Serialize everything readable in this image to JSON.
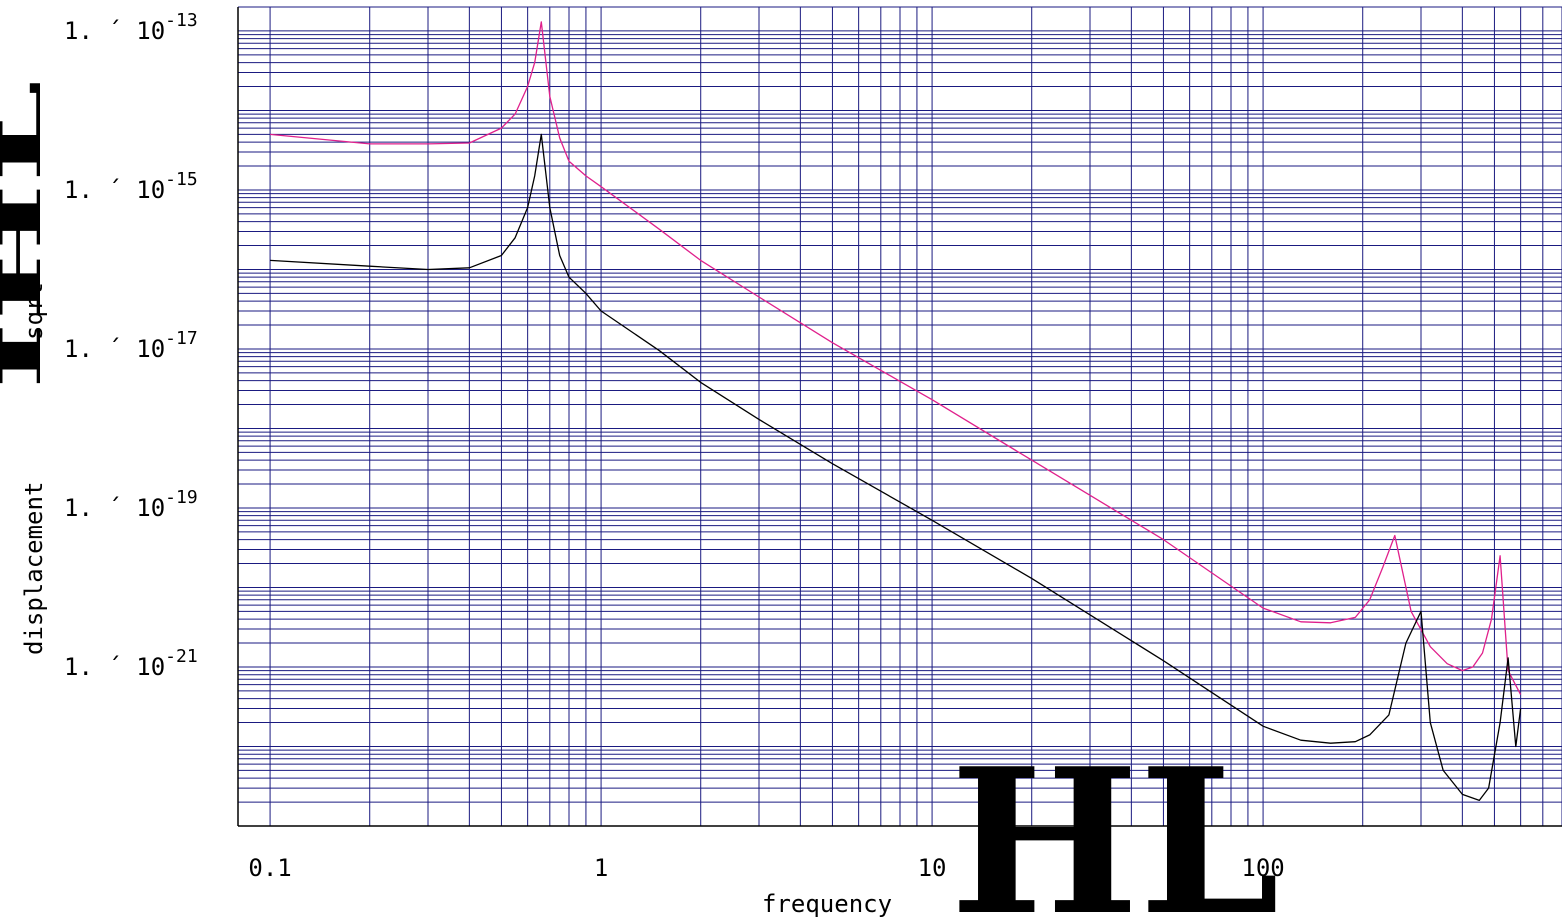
{
  "chart_data": {
    "type": "line",
    "x_scale": "log",
    "y_scale": "log",
    "xlim": [
      0.08,
      800
    ],
    "ylim": [
      1e-23,
      2e-13
    ],
    "xlabel": "frequency",
    "ylabel": "displacement",
    "ylabel_fragment": "sqrt",
    "x_ticks": [
      {
        "value": 0.1,
        "label": "0.1"
      },
      {
        "value": 1,
        "label": "1"
      },
      {
        "value": 10,
        "label": "10"
      },
      {
        "value": 100,
        "label": "100"
      }
    ],
    "y_ticks": [
      {
        "value": 1e-13,
        "prefix": "1. ´ 10",
        "exp": "-13"
      },
      {
        "value": 1e-15,
        "prefix": "1. ´ 10",
        "exp": "-15"
      },
      {
        "value": 1e-17,
        "prefix": "1. ´ 10",
        "exp": "-17"
      },
      {
        "value": 1e-19,
        "prefix": "1. ´ 10",
        "exp": "-19"
      },
      {
        "value": 1e-21,
        "prefix": "1. ´ 10",
        "exp": "-21"
      }
    ],
    "grid": true,
    "grid_color": "#1a1a80",
    "overlay_glyphs": {
      "x_axis": "HL",
      "y_axis": "IHL"
    },
    "series": [
      {
        "color": "#e0208c",
        "x": [
          0.1,
          0.2,
          0.3,
          0.4,
          0.5,
          0.55,
          0.6,
          0.63,
          0.66,
          0.7,
          0.75,
          0.8,
          0.9,
          1,
          1.5,
          2,
          3,
          5,
          10,
          20,
          50,
          100,
          130,
          160,
          190,
          210,
          230,
          250,
          280,
          320,
          360,
          400,
          430,
          460,
          490,
          520,
          550,
          600
        ],
        "y": [
          5e-15,
          3.8e-15,
          3.8e-15,
          3.9e-15,
          6e-15,
          9e-15,
          2e-14,
          4e-14,
          1.3e-13,
          1.5e-14,
          4.5e-15,
          2.3e-15,
          1.5e-15,
          1.1e-15,
          3.2e-16,
          1.3e-16,
          4.5e-17,
          1.2e-17,
          2.3e-18,
          4e-19,
          4e-20,
          5.5e-21,
          3.7e-21,
          3.6e-21,
          4.2e-21,
          7e-21,
          1.8e-20,
          4.5e-20,
          5e-21,
          1.8e-21,
          1.1e-21,
          9e-22,
          1e-21,
          1.5e-21,
          4e-21,
          2.5e-20,
          9e-22,
          4.5e-22
        ]
      },
      {
        "color": "#000000",
        "x": [
          0.1,
          0.2,
          0.3,
          0.4,
          0.5,
          0.55,
          0.6,
          0.63,
          0.66,
          0.7,
          0.75,
          0.8,
          0.9,
          1,
          1.5,
          2,
          3,
          5,
          10,
          20,
          50,
          100,
          130,
          160,
          190,
          210,
          240,
          270,
          300,
          320,
          350,
          400,
          450,
          480,
          520,
          550,
          580,
          600
        ],
        "y": [
          1.3e-16,
          1.1e-16,
          1e-16,
          1.05e-16,
          1.5e-16,
          2.5e-16,
          6e-16,
          1.5e-15,
          5e-15,
          6e-16,
          1.5e-16,
          8e-17,
          5e-17,
          3e-17,
          9.5e-18,
          3.8e-18,
          1.3e-18,
          3.6e-19,
          7e-20,
          1.3e-20,
          1.2e-21,
          1.8e-22,
          1.2e-22,
          1.1e-22,
          1.15e-22,
          1.4e-22,
          2.5e-22,
          2e-21,
          5e-21,
          2e-22,
          5e-23,
          2.5e-23,
          2.1e-23,
          3e-23,
          2e-22,
          1.3e-21,
          1e-22,
          3e-22
        ]
      }
    ]
  }
}
